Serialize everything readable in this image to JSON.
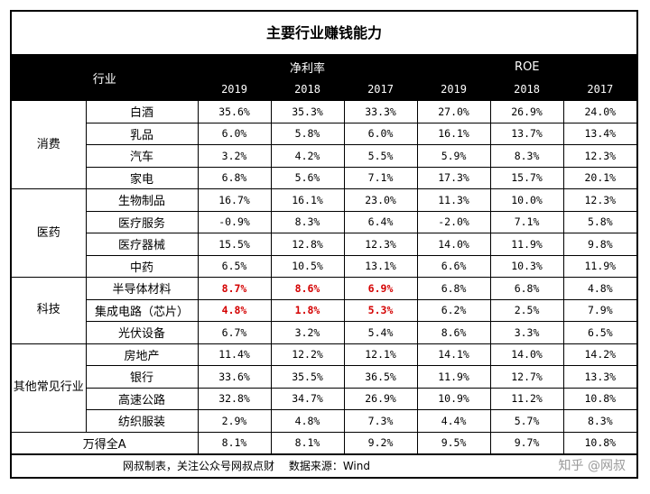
{
  "title": "主要行业赚钱能力",
  "header": {
    "industry_label": "行业",
    "net_margin_label": "净利率",
    "roe_label": "ROE",
    "years": [
      "2019",
      "2018",
      "2017"
    ]
  },
  "groups": [
    {
      "name": "消费",
      "rows": [
        {
          "name": "白酒",
          "net": [
            "35.6%",
            "35.3%",
            "33.3%"
          ],
          "roe": [
            "27.0%",
            "26.9%",
            "24.0%"
          ]
        },
        {
          "name": "乳品",
          "net": [
            "6.0%",
            "5.8%",
            "6.0%"
          ],
          "roe": [
            "16.1%",
            "13.7%",
            "13.4%"
          ]
        },
        {
          "name": "汽车",
          "net": [
            "3.2%",
            "4.2%",
            "5.5%"
          ],
          "roe": [
            "5.9%",
            "8.3%",
            "12.3%"
          ]
        },
        {
          "name": "家电",
          "net": [
            "6.8%",
            "5.6%",
            "7.1%"
          ],
          "roe": [
            "17.3%",
            "15.7%",
            "20.1%"
          ]
        }
      ]
    },
    {
      "name": "医药",
      "rows": [
        {
          "name": "生物制品",
          "net": [
            "16.7%",
            "16.1%",
            "23.0%"
          ],
          "roe": [
            "11.3%",
            "10.0%",
            "12.3%"
          ]
        },
        {
          "name": "医疗服务",
          "net": [
            "-0.9%",
            "8.3%",
            "6.4%"
          ],
          "roe": [
            "-2.0%",
            "7.1%",
            "5.8%"
          ]
        },
        {
          "name": "医疗器械",
          "net": [
            "15.5%",
            "12.8%",
            "12.3%"
          ],
          "roe": [
            "14.0%",
            "11.9%",
            "9.8%"
          ]
        },
        {
          "name": "中药",
          "net": [
            "6.5%",
            "10.5%",
            "13.1%"
          ],
          "roe": [
            "6.6%",
            "10.3%",
            "11.9%"
          ]
        }
      ]
    },
    {
      "name": "科技",
      "rows": [
        {
          "name": "半导体材料",
          "net": [
            "8.7%",
            "8.6%",
            "6.9%"
          ],
          "roe": [
            "6.8%",
            "6.8%",
            "4.8%"
          ],
          "highlight": true
        },
        {
          "name": "集成电路（芯片）",
          "net": [
            "4.8%",
            "1.8%",
            "5.3%"
          ],
          "roe": [
            "6.2%",
            "2.5%",
            "7.9%"
          ],
          "highlight": true
        },
        {
          "name": "光伏设备",
          "net": [
            "6.7%",
            "3.2%",
            "5.4%"
          ],
          "roe": [
            "8.6%",
            "3.3%",
            "6.5%"
          ]
        }
      ]
    },
    {
      "name": "其他常见行业",
      "rows": [
        {
          "name": "房地产",
          "net": [
            "11.4%",
            "12.2%",
            "12.1%"
          ],
          "roe": [
            "14.1%",
            "14.0%",
            "14.2%"
          ]
        },
        {
          "name": "银行",
          "net": [
            "33.6%",
            "35.5%",
            "36.5%"
          ],
          "roe": [
            "11.9%",
            "12.7%",
            "13.3%"
          ]
        },
        {
          "name": "高速公路",
          "net": [
            "32.8%",
            "34.7%",
            "26.9%"
          ],
          "roe": [
            "10.9%",
            "11.2%",
            "10.8%"
          ]
        },
        {
          "name": "纺织服装",
          "net": [
            "2.9%",
            "4.8%",
            "7.3%"
          ],
          "roe": [
            "4.4%",
            "5.7%",
            "8.3%"
          ]
        }
      ]
    }
  ],
  "total": {
    "name": "万得全A",
    "net": [
      "8.1%",
      "8.1%",
      "9.2%"
    ],
    "roe": [
      "9.5%",
      "9.7%",
      "10.8%"
    ]
  },
  "footer": {
    "note": "网叔制表，关注公众号网叔点财　 数据来源：Wind",
    "watermark": "知乎 @网叔"
  },
  "colors": {
    "highlight": "#d40000",
    "header_bg": "#000000"
  }
}
